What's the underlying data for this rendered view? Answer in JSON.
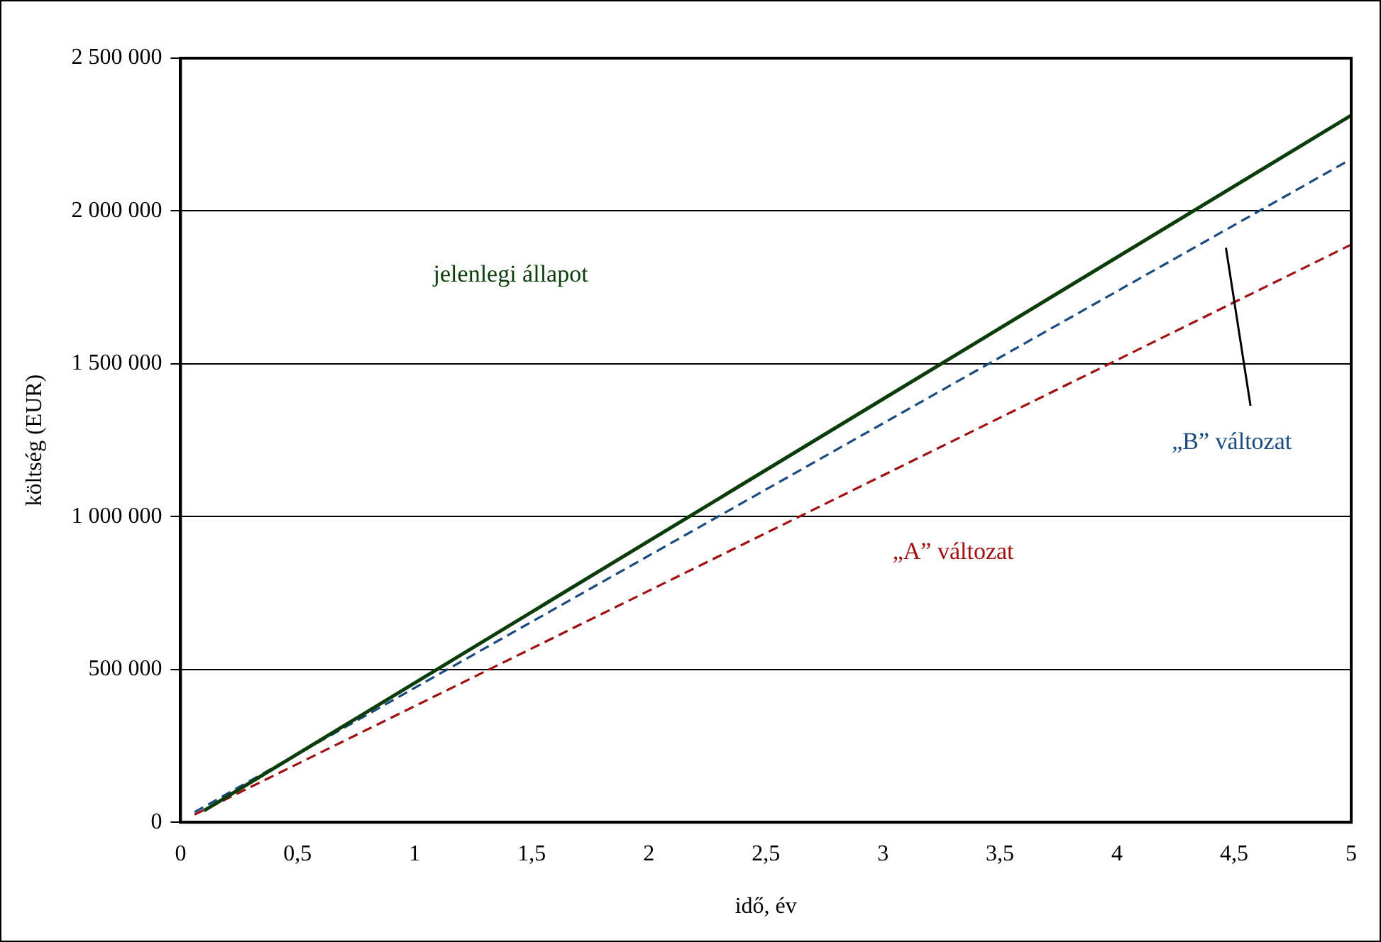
{
  "chart_data": {
    "type": "line",
    "xlabel": "idő, év",
    "ylabel": "költség (EUR)",
    "xlim": [
      0,
      5
    ],
    "xticks": [
      0,
      {
        "value": 0.5,
        "label": "0,5"
      },
      1,
      {
        "value": 1.5,
        "label": "1,5"
      },
      2,
      {
        "value": 2.5,
        "label": "2,5"
      },
      3,
      {
        "value": 3.5,
        "label": "3,5"
      },
      4,
      {
        "value": 4.5,
        "label": "4,5"
      },
      5
    ],
    "ylim": [
      0,
      2500000
    ],
    "yticks": [
      0,
      {
        "value": 500000,
        "label": "500 000"
      },
      {
        "value": 1000000,
        "label": "1 000 000"
      },
      {
        "value": 1500000,
        "label": "1 500 000"
      },
      {
        "value": 2000000,
        "label": "2 000 000"
      },
      {
        "value": 2500000,
        "label": "2 500 000"
      }
    ],
    "grid": "y",
    "legend": false,
    "marker": "none",
    "series": [
      {
        "name": "jelenlegi állapot",
        "color": "#0b3d0b",
        "line_style": "solid",
        "x": [
          0.1,
          5
        ],
        "values": [
          38000,
          2313000
        ]
      },
      {
        "name": "„B” változat",
        "color": "#1a4a80",
        "line_style": "dashed",
        "x": [
          0.06,
          5
        ],
        "values": [
          33000,
          2170000
        ]
      },
      {
        "name": "„A” változat",
        "color": "#a01010",
        "line_style": "dashed",
        "x": [
          0.06,
          5
        ],
        "values": [
          25000,
          1890000
        ]
      }
    ]
  }
}
